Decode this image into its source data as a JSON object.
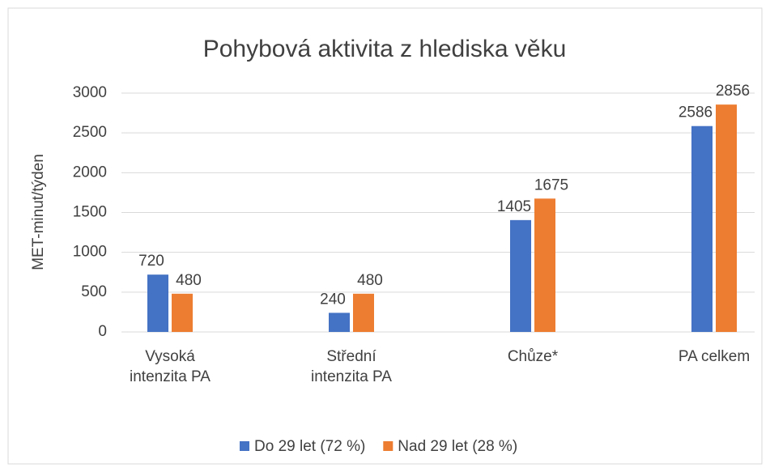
{
  "chart_data": {
    "type": "bar",
    "title": "Pohybová aktivita z hlediska věku",
    "y_label": "MET-minut/týden",
    "categories": [
      "Vysoká intenzita PA",
      "Střední intenzita PA",
      "Chůze*",
      "PA celkem"
    ],
    "series": [
      {
        "name": "Do 29 let (72 %)",
        "color": "#4472c4",
        "values": [
          720,
          240,
          1405,
          2586
        ]
      },
      {
        "name": "Nad 29 let (28 %)",
        "color": "#ed7d31",
        "values": [
          480,
          480,
          1675,
          2856
        ]
      }
    ],
    "ylim": [
      0,
      3000
    ],
    "yticks": [
      0,
      500,
      1000,
      1500,
      2000,
      2500,
      3000
    ],
    "grid": true,
    "legend": "bottom"
  }
}
